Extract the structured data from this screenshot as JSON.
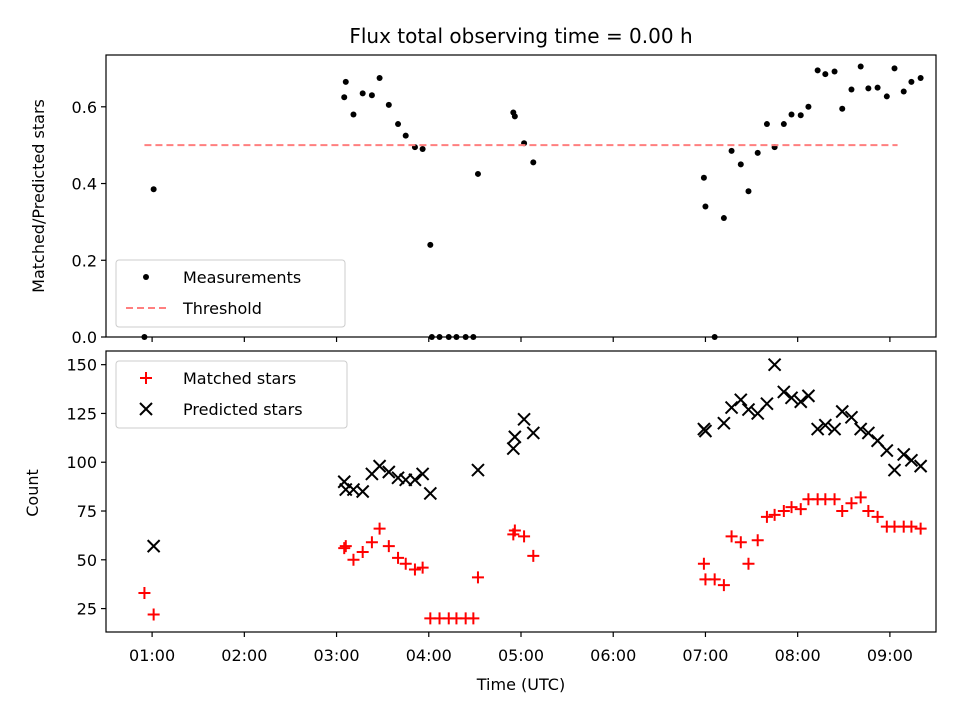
{
  "chart_data": [
    {
      "type": "scatter",
      "title": "Flux total observing time = 0.00 h",
      "xlabel": "",
      "ylabel": "Matched/Predicted stars",
      "ylim": [
        0,
        0.735
      ],
      "yticks": [
        0.0,
        0.2,
        0.4,
        0.6
      ],
      "ytick_labels": [
        "0.0",
        "0.2",
        "0.4",
        "0.6"
      ],
      "xlim": [
        "00:30",
        "09:30"
      ],
      "grid": false,
      "legend_position": "lower-left",
      "series": [
        {
          "name": "Measurements",
          "marker": "dot",
          "color": "#000000",
          "points": [
            [
              "00:55",
              0.0
            ],
            [
              "01:01",
              0.385
            ],
            [
              "03:05",
              0.625
            ],
            [
              "03:06",
              0.665
            ],
            [
              "03:11",
              0.58
            ],
            [
              "03:17",
              0.635
            ],
            [
              "03:23",
              0.63
            ],
            [
              "03:28",
              0.675
            ],
            [
              "03:34",
              0.605
            ],
            [
              "03:40",
              0.555
            ],
            [
              "03:45",
              0.525
            ],
            [
              "03:51",
              0.495
            ],
            [
              "03:56",
              0.49
            ],
            [
              "04:01",
              0.24
            ],
            [
              "04:02",
              0.0
            ],
            [
              "04:07",
              0.0
            ],
            [
              "04:13",
              0.0
            ],
            [
              "04:18",
              0.0
            ],
            [
              "04:24",
              0.0
            ],
            [
              "04:29",
              0.0
            ],
            [
              "04:32",
              0.425
            ],
            [
              "04:55",
              0.585
            ],
            [
              "04:56",
              0.575
            ],
            [
              "05:02",
              0.505
            ],
            [
              "05:08",
              0.455
            ],
            [
              "06:59",
              0.415
            ],
            [
              "07:00",
              0.34
            ],
            [
              "07:06",
              0.0
            ],
            [
              "07:12",
              0.31
            ],
            [
              "07:17",
              0.485
            ],
            [
              "07:23",
              0.45
            ],
            [
              "07:28",
              0.38
            ],
            [
              "07:34",
              0.48
            ],
            [
              "07:40",
              0.555
            ],
            [
              "07:45",
              0.495
            ],
            [
              "07:51",
              0.555
            ],
            [
              "07:56",
              0.58
            ],
            [
              "08:02",
              0.578
            ],
            [
              "08:07",
              0.6
            ],
            [
              "08:13",
              0.695
            ],
            [
              "08:18",
              0.685
            ],
            [
              "08:24",
              0.692
            ],
            [
              "08:29",
              0.595
            ],
            [
              "08:35",
              0.645
            ],
            [
              "08:41",
              0.705
            ],
            [
              "08:46",
              0.648
            ],
            [
              "08:52",
              0.65
            ],
            [
              "08:58",
              0.627
            ],
            [
              "09:03",
              0.7
            ],
            [
              "09:09",
              0.64
            ],
            [
              "09:14",
              0.665
            ],
            [
              "09:20",
              0.675
            ]
          ]
        },
        {
          "name": "Threshold",
          "marker": "dashed-line",
          "color": "#ff7f7f",
          "points": [
            [
              "00:55",
              0.5
            ],
            [
              "09:05",
              0.5
            ]
          ]
        }
      ]
    },
    {
      "type": "scatter",
      "title": "",
      "xlabel": "Time (UTC)",
      "ylabel": "Count",
      "ylim": [
        13,
        157
      ],
      "yticks": [
        25,
        50,
        75,
        100,
        125,
        150
      ],
      "ytick_labels": [
        "25",
        "50",
        "75",
        "100",
        "125",
        "150"
      ],
      "xlim": [
        "00:30",
        "09:30"
      ],
      "xticks": [
        "01:00",
        "02:00",
        "03:00",
        "04:00",
        "05:00",
        "06:00",
        "07:00",
        "08:00",
        "09:00"
      ],
      "xtick_labels": [
        "01:00",
        "02:00",
        "03:00",
        "04:00",
        "05:00",
        "06:00",
        "07:00",
        "08:00",
        "09:00"
      ],
      "grid": false,
      "legend_position": "upper-left",
      "series": [
        {
          "name": "Matched stars",
          "marker": "plus",
          "color": "#ff0000",
          "points": [
            [
              "00:55",
              33
            ],
            [
              "01:01",
              22
            ],
            [
              "03:05",
              56
            ],
            [
              "03:06",
              57
            ],
            [
              "03:11",
              50
            ],
            [
              "03:17",
              54
            ],
            [
              "03:23",
              59
            ],
            [
              "03:28",
              66
            ],
            [
              "03:34",
              57
            ],
            [
              "03:40",
              51
            ],
            [
              "03:45",
              48
            ],
            [
              "03:51",
              45
            ],
            [
              "03:56",
              46
            ],
            [
              "04:01",
              20
            ],
            [
              "04:07",
              20
            ],
            [
              "04:13",
              20
            ],
            [
              "04:18",
              20
            ],
            [
              "04:24",
              20
            ],
            [
              "04:29",
              20
            ],
            [
              "04:32",
              41
            ],
            [
              "04:55",
              63
            ],
            [
              "04:56",
              65
            ],
            [
              "05:02",
              62
            ],
            [
              "05:08",
              52
            ],
            [
              "06:59",
              48
            ],
            [
              "07:00",
              40
            ],
            [
              "07:06",
              40
            ],
            [
              "07:12",
              37
            ],
            [
              "07:17",
              62
            ],
            [
              "07:23",
              59
            ],
            [
              "07:28",
              48
            ],
            [
              "07:34",
              60
            ],
            [
              "07:40",
              72
            ],
            [
              "07:45",
              73
            ],
            [
              "07:51",
              75
            ],
            [
              "07:56",
              77
            ],
            [
              "08:02",
              76
            ],
            [
              "08:07",
              81
            ],
            [
              "08:13",
              81
            ],
            [
              "08:18",
              81
            ],
            [
              "08:24",
              81
            ],
            [
              "08:29",
              75
            ],
            [
              "08:35",
              79
            ],
            [
              "08:41",
              82
            ],
            [
              "08:46",
              75
            ],
            [
              "08:52",
              72
            ],
            [
              "08:58",
              67
            ],
            [
              "09:03",
              67
            ],
            [
              "09:09",
              67
            ],
            [
              "09:14",
              67
            ],
            [
              "09:20",
              66
            ]
          ]
        },
        {
          "name": "Predicted stars",
          "marker": "x",
          "color": "#000000",
          "points": [
            [
              "01:01",
              57
            ],
            [
              "03:05",
              90
            ],
            [
              "03:06",
              86
            ],
            [
              "03:11",
              86
            ],
            [
              "03:17",
              85
            ],
            [
              "03:23",
              94
            ],
            [
              "03:28",
              98
            ],
            [
              "03:34",
              95
            ],
            [
              "03:40",
              92
            ],
            [
              "03:45",
              91
            ],
            [
              "03:51",
              91
            ],
            [
              "03:56",
              94
            ],
            [
              "04:01",
              84
            ],
            [
              "04:32",
              96
            ],
            [
              "04:55",
              107
            ],
            [
              "04:56",
              113
            ],
            [
              "05:02",
              122
            ],
            [
              "05:08",
              115
            ],
            [
              "06:59",
              117
            ],
            [
              "07:00",
              116
            ],
            [
              "07:12",
              120
            ],
            [
              "07:17",
              128
            ],
            [
              "07:23",
              132
            ],
            [
              "07:28",
              127
            ],
            [
              "07:34",
              125
            ],
            [
              "07:40",
              130
            ],
            [
              "07:45",
              150
            ],
            [
              "07:51",
              136
            ],
            [
              "07:56",
              133
            ],
            [
              "08:02",
              131
            ],
            [
              "08:07",
              134
            ],
            [
              "08:13",
              117
            ],
            [
              "08:18",
              119
            ],
            [
              "08:24",
              117
            ],
            [
              "08:29",
              126
            ],
            [
              "08:35",
              123
            ],
            [
              "08:41",
              117
            ],
            [
              "08:46",
              115
            ],
            [
              "08:52",
              111
            ],
            [
              "08:58",
              106
            ],
            [
              "09:03",
              96
            ],
            [
              "09:09",
              104
            ],
            [
              "09:14",
              101
            ],
            [
              "09:20",
              98
            ]
          ]
        }
      ]
    }
  ]
}
